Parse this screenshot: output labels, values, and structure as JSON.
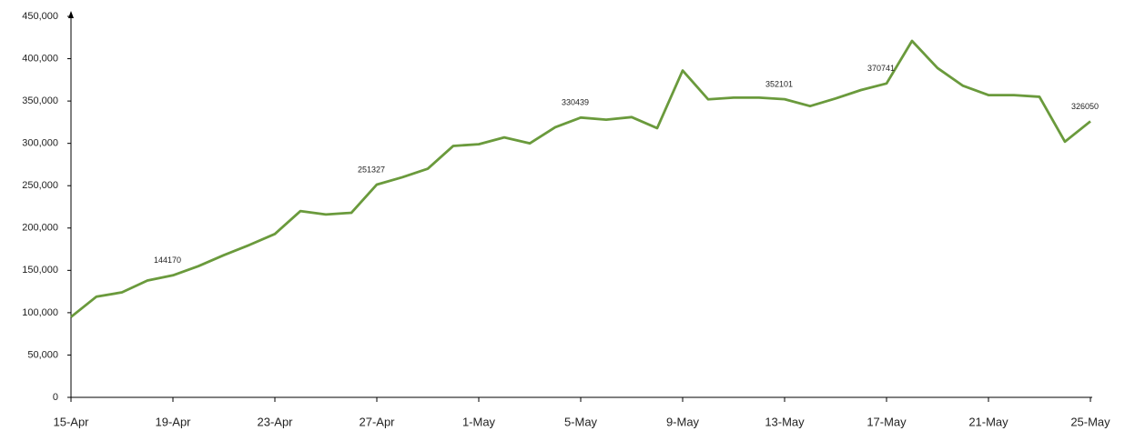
{
  "chart_data": {
    "type": "line",
    "categories": [
      "15-Apr",
      null,
      null,
      null,
      "19-Apr",
      null,
      null,
      null,
      "23-Apr",
      null,
      null,
      null,
      "27-Apr",
      null,
      null,
      null,
      "1-May",
      null,
      null,
      null,
      "5-May",
      null,
      null,
      null,
      "9-May",
      null,
      null,
      null,
      "13-May",
      null,
      null,
      null,
      "17-May",
      null,
      null,
      null,
      "21-May",
      null,
      null,
      null,
      "25-May"
    ],
    "series": [
      {
        "color": "#6a9a3c",
        "values": [
          95000,
          119000,
          124000,
          138000,
          144170,
          155000,
          168000,
          180000,
          193000,
          220000,
          216000,
          218000,
          251327,
          260000,
          270000,
          297000,
          299000,
          307000,
          300000,
          319000,
          330439,
          328000,
          331000,
          318000,
          386000,
          352000,
          354000,
          354000,
          352101,
          344000,
          353000,
          363000,
          370741,
          421000,
          389000,
          368000,
          357000,
          357000,
          355000,
          302000,
          326050
        ],
        "value_labels": [
          null,
          null,
          null,
          null,
          "144170",
          null,
          null,
          null,
          null,
          null,
          null,
          null,
          "251327",
          null,
          null,
          null,
          null,
          null,
          null,
          null,
          "330439",
          null,
          null,
          null,
          null,
          null,
          null,
          null,
          "352101",
          null,
          null,
          null,
          "370741",
          null,
          null,
          null,
          null,
          null,
          null,
          null,
          "326050"
        ]
      }
    ],
    "ylim": [
      0,
      450000
    ],
    "yticks": [
      0,
      {
        "value": 50000,
        "label": "50,000"
      },
      {
        "value": 100000,
        "label": "100,000"
      },
      {
        "value": 150000,
        "label": "150,000"
      },
      {
        "value": 200000,
        "label": "200,000"
      },
      {
        "value": 250000,
        "label": "250,000"
      },
      {
        "value": 300000,
        "label": "300,000"
      },
      {
        "value": 350000,
        "label": "350,000"
      },
      {
        "value": 400000,
        "label": "400,000"
      },
      {
        "value": 450000,
        "label": "450,000"
      }
    ],
    "grid": false
  }
}
